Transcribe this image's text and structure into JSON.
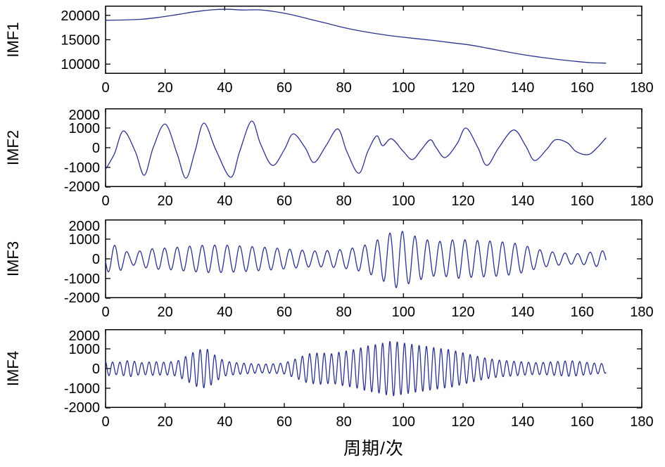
{
  "figure": {
    "xlabel": "周期/次",
    "line_color": "#2b338c",
    "axis_color": "#000000",
    "background": "#ffffff",
    "tick_font_size": 20,
    "ylabel_font_size": 22
  },
  "chart_data": [
    {
      "id": "imf1",
      "type": "line",
      "ylabel": "IMF1",
      "xlim": [
        0,
        180
      ],
      "ylim": [
        8000,
        22000
      ],
      "xticks": [
        0,
        20,
        40,
        60,
        80,
        100,
        120,
        140,
        160,
        180
      ],
      "yticks": [
        10000,
        15000,
        20000
      ],
      "mode": "keypoints",
      "points": [
        [
          0,
          19000
        ],
        [
          6,
          19050
        ],
        [
          12,
          19200
        ],
        [
          18,
          19600
        ],
        [
          24,
          20150
        ],
        [
          30,
          20750
        ],
        [
          36,
          21150
        ],
        [
          41,
          21250
        ],
        [
          46,
          21100
        ],
        [
          51,
          21150
        ],
        [
          56,
          20850
        ],
        [
          62,
          20200
        ],
        [
          68,
          19300
        ],
        [
          74,
          18400
        ],
        [
          80,
          17500
        ],
        [
          86,
          16750
        ],
        [
          92,
          16150
        ],
        [
          98,
          15650
        ],
        [
          104,
          15250
        ],
        [
          110,
          14850
        ],
        [
          116,
          14400
        ],
        [
          122,
          13950
        ],
        [
          128,
          13300
        ],
        [
          134,
          12600
        ],
        [
          140,
          11950
        ],
        [
          146,
          11400
        ],
        [
          152,
          10950
        ],
        [
          158,
          10550
        ],
        [
          163,
          10300
        ],
        [
          168,
          10200
        ]
      ]
    },
    {
      "id": "imf2",
      "type": "line",
      "ylabel": "IMF2",
      "xlim": [
        0,
        180
      ],
      "ylim": [
        -2000,
        2000
      ],
      "xticks": [
        0,
        20,
        40,
        60,
        80,
        100,
        120,
        140,
        160,
        180
      ],
      "yticks": [
        -2000,
        -1000,
        0,
        1000,
        2000
      ],
      "mode": "keypoints",
      "points": [
        [
          0,
          -1100
        ],
        [
          3,
          -300
        ],
        [
          6,
          850
        ],
        [
          10,
          -200
        ],
        [
          13,
          -1400
        ],
        [
          16,
          0
        ],
        [
          20,
          1200
        ],
        [
          24,
          -300
        ],
        [
          27,
          -1550
        ],
        [
          30,
          -200
        ],
        [
          33,
          1250
        ],
        [
          37,
          -100
        ],
        [
          42,
          -1500
        ],
        [
          45,
          -200
        ],
        [
          49,
          1350
        ],
        [
          52,
          200
        ],
        [
          56,
          -900
        ],
        [
          60,
          -100
        ],
        [
          63,
          700
        ],
        [
          67,
          0
        ],
        [
          70,
          -750
        ],
        [
          74,
          100
        ],
        [
          78,
          950
        ],
        [
          81,
          -200
        ],
        [
          85,
          -1300
        ],
        [
          88,
          -200
        ],
        [
          91,
          600
        ],
        [
          93,
          100
        ],
        [
          96,
          450
        ],
        [
          100,
          -200
        ],
        [
          103,
          -600
        ],
        [
          106,
          -100
        ],
        [
          109,
          400
        ],
        [
          111,
          0
        ],
        [
          114,
          -500
        ],
        [
          118,
          200
        ],
        [
          121,
          1000
        ],
        [
          125,
          0
        ],
        [
          128,
          -900
        ],
        [
          132,
          0
        ],
        [
          137,
          900
        ],
        [
          141,
          100
        ],
        [
          144,
          -650
        ],
        [
          148,
          -100
        ],
        [
          151,
          400
        ],
        [
          155,
          250
        ],
        [
          158,
          -200
        ],
        [
          162,
          -350
        ],
        [
          165,
          0
        ],
        [
          168,
          500
        ]
      ]
    },
    {
      "id": "imf3",
      "type": "line",
      "ylabel": "IMF3",
      "xlim": [
        0,
        180
      ],
      "ylim": [
        -2000,
        2000
      ],
      "xticks": [
        0,
        20,
        40,
        60,
        80,
        100,
        120,
        140,
        160,
        180
      ],
      "yticks": [
        -2000,
        -1000,
        0,
        1000,
        2000
      ],
      "mode": "am",
      "period": 4.2,
      "phase": 3.3,
      "xmax": 168,
      "envelope": [
        [
          0,
          650
        ],
        [
          4,
          700
        ],
        [
          8,
          280
        ],
        [
          12,
          420
        ],
        [
          16,
          520
        ],
        [
          22,
          560
        ],
        [
          28,
          640
        ],
        [
          34,
          700
        ],
        [
          40,
          700
        ],
        [
          46,
          650
        ],
        [
          52,
          600
        ],
        [
          58,
          540
        ],
        [
          64,
          460
        ],
        [
          70,
          400
        ],
        [
          76,
          430
        ],
        [
          82,
          520
        ],
        [
          86,
          650
        ],
        [
          90,
          850
        ],
        [
          94,
          1200
        ],
        [
          98,
          1500
        ],
        [
          102,
          1250
        ],
        [
          106,
          1050
        ],
        [
          110,
          880
        ],
        [
          114,
          900
        ],
        [
          118,
          1000
        ],
        [
          122,
          950
        ],
        [
          126,
          920
        ],
        [
          130,
          900
        ],
        [
          134,
          850
        ],
        [
          138,
          780
        ],
        [
          142,
          620
        ],
        [
          146,
          450
        ],
        [
          150,
          350
        ],
        [
          154,
          300
        ],
        [
          158,
          260
        ],
        [
          162,
          320
        ],
        [
          166,
          420
        ],
        [
          168,
          380
        ]
      ]
    },
    {
      "id": "imf4",
      "type": "line",
      "ylabel": "IMF4",
      "xlim": [
        0,
        180
      ],
      "ylim": [
        -2000,
        2000
      ],
      "xticks": [
        0,
        20,
        40,
        60,
        80,
        100,
        120,
        140,
        160,
        180
      ],
      "yticks": [
        -2000,
        -1000,
        0,
        1000,
        2000
      ],
      "mode": "am",
      "period": 2.45,
      "phase": 1.8,
      "xmax": 168,
      "envelope": [
        [
          0,
          380
        ],
        [
          4,
          300
        ],
        [
          8,
          420
        ],
        [
          12,
          300
        ],
        [
          16,
          350
        ],
        [
          20,
          320
        ],
        [
          24,
          380
        ],
        [
          28,
          700
        ],
        [
          31,
          950
        ],
        [
          34,
          1000
        ],
        [
          37,
          650
        ],
        [
          40,
          380
        ],
        [
          44,
          300
        ],
        [
          48,
          260
        ],
        [
          52,
          220
        ],
        [
          56,
          240
        ],
        [
          60,
          280
        ],
        [
          64,
          500
        ],
        [
          68,
          750
        ],
        [
          72,
          800
        ],
        [
          76,
          750
        ],
        [
          80,
          880
        ],
        [
          84,
          980
        ],
        [
          88,
          1150
        ],
        [
          92,
          1250
        ],
        [
          96,
          1400
        ],
        [
          100,
          1300
        ],
        [
          104,
          1200
        ],
        [
          108,
          1120
        ],
        [
          112,
          1020
        ],
        [
          116,
          950
        ],
        [
          120,
          800
        ],
        [
          124,
          650
        ],
        [
          128,
          520
        ],
        [
          132,
          430
        ],
        [
          136,
          380
        ],
        [
          140,
          340
        ],
        [
          144,
          300
        ],
        [
          148,
          320
        ],
        [
          152,
          360
        ],
        [
          156,
          400
        ],
        [
          160,
          340
        ],
        [
          164,
          280
        ],
        [
          168,
          240
        ]
      ]
    }
  ]
}
